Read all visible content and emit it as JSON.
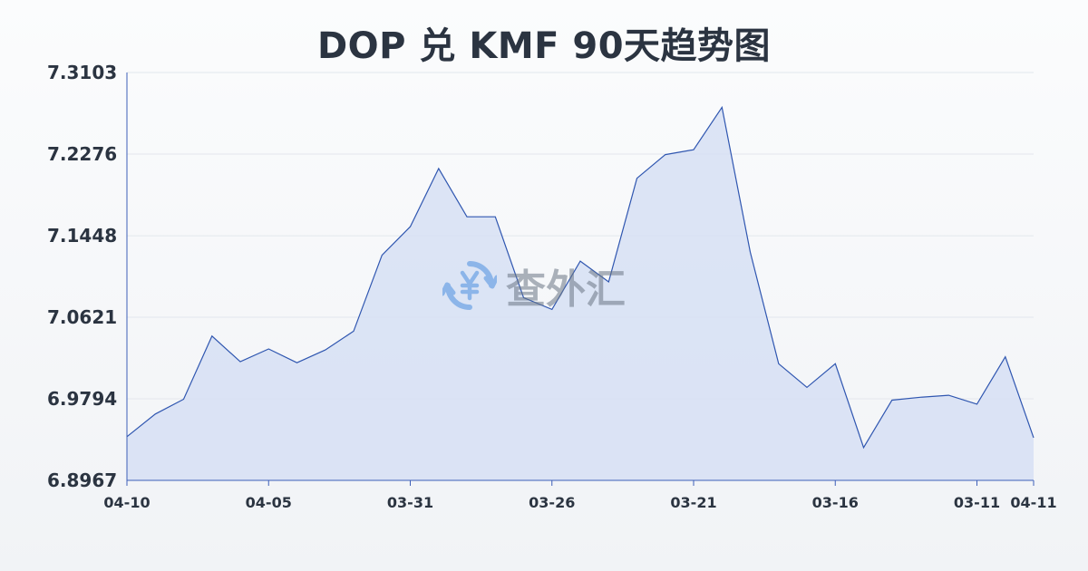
{
  "chart_data": {
    "type": "area",
    "title": "DOP 兑 KMF 90天趋势图",
    "xlabel": "",
    "ylabel": "",
    "ylim": [
      6.8967,
      7.3103
    ],
    "y_ticks": [
      "7.3103",
      "7.2276",
      "7.1448",
      "7.0621",
      "6.9794",
      "6.8967"
    ],
    "x_ticks": [
      "04-10",
      "04-05",
      "03-31",
      "03-26",
      "03-21",
      "03-16",
      "03-11",
      "04-11"
    ],
    "grid": true,
    "series": [
      {
        "values": [
          6.941,
          6.964,
          6.979,
          7.043,
          7.017,
          7.03,
          7.016,
          7.029,
          7.048,
          7.125,
          7.154,
          7.213,
          7.164,
          7.164,
          7.082,
          7.07,
          7.119,
          7.098,
          7.203,
          7.227,
          7.232,
          7.275,
          7.128,
          7.015,
          6.991,
          7.015,
          6.93,
          6.978,
          6.981,
          6.983,
          6.974,
          7.022,
          6.94
        ]
      }
    ],
    "colors": {
      "line": "#2f56b0",
      "fill": "#d5def4"
    }
  },
  "watermark": {
    "text": "查外汇",
    "icon": "yen-exchange-icon"
  }
}
